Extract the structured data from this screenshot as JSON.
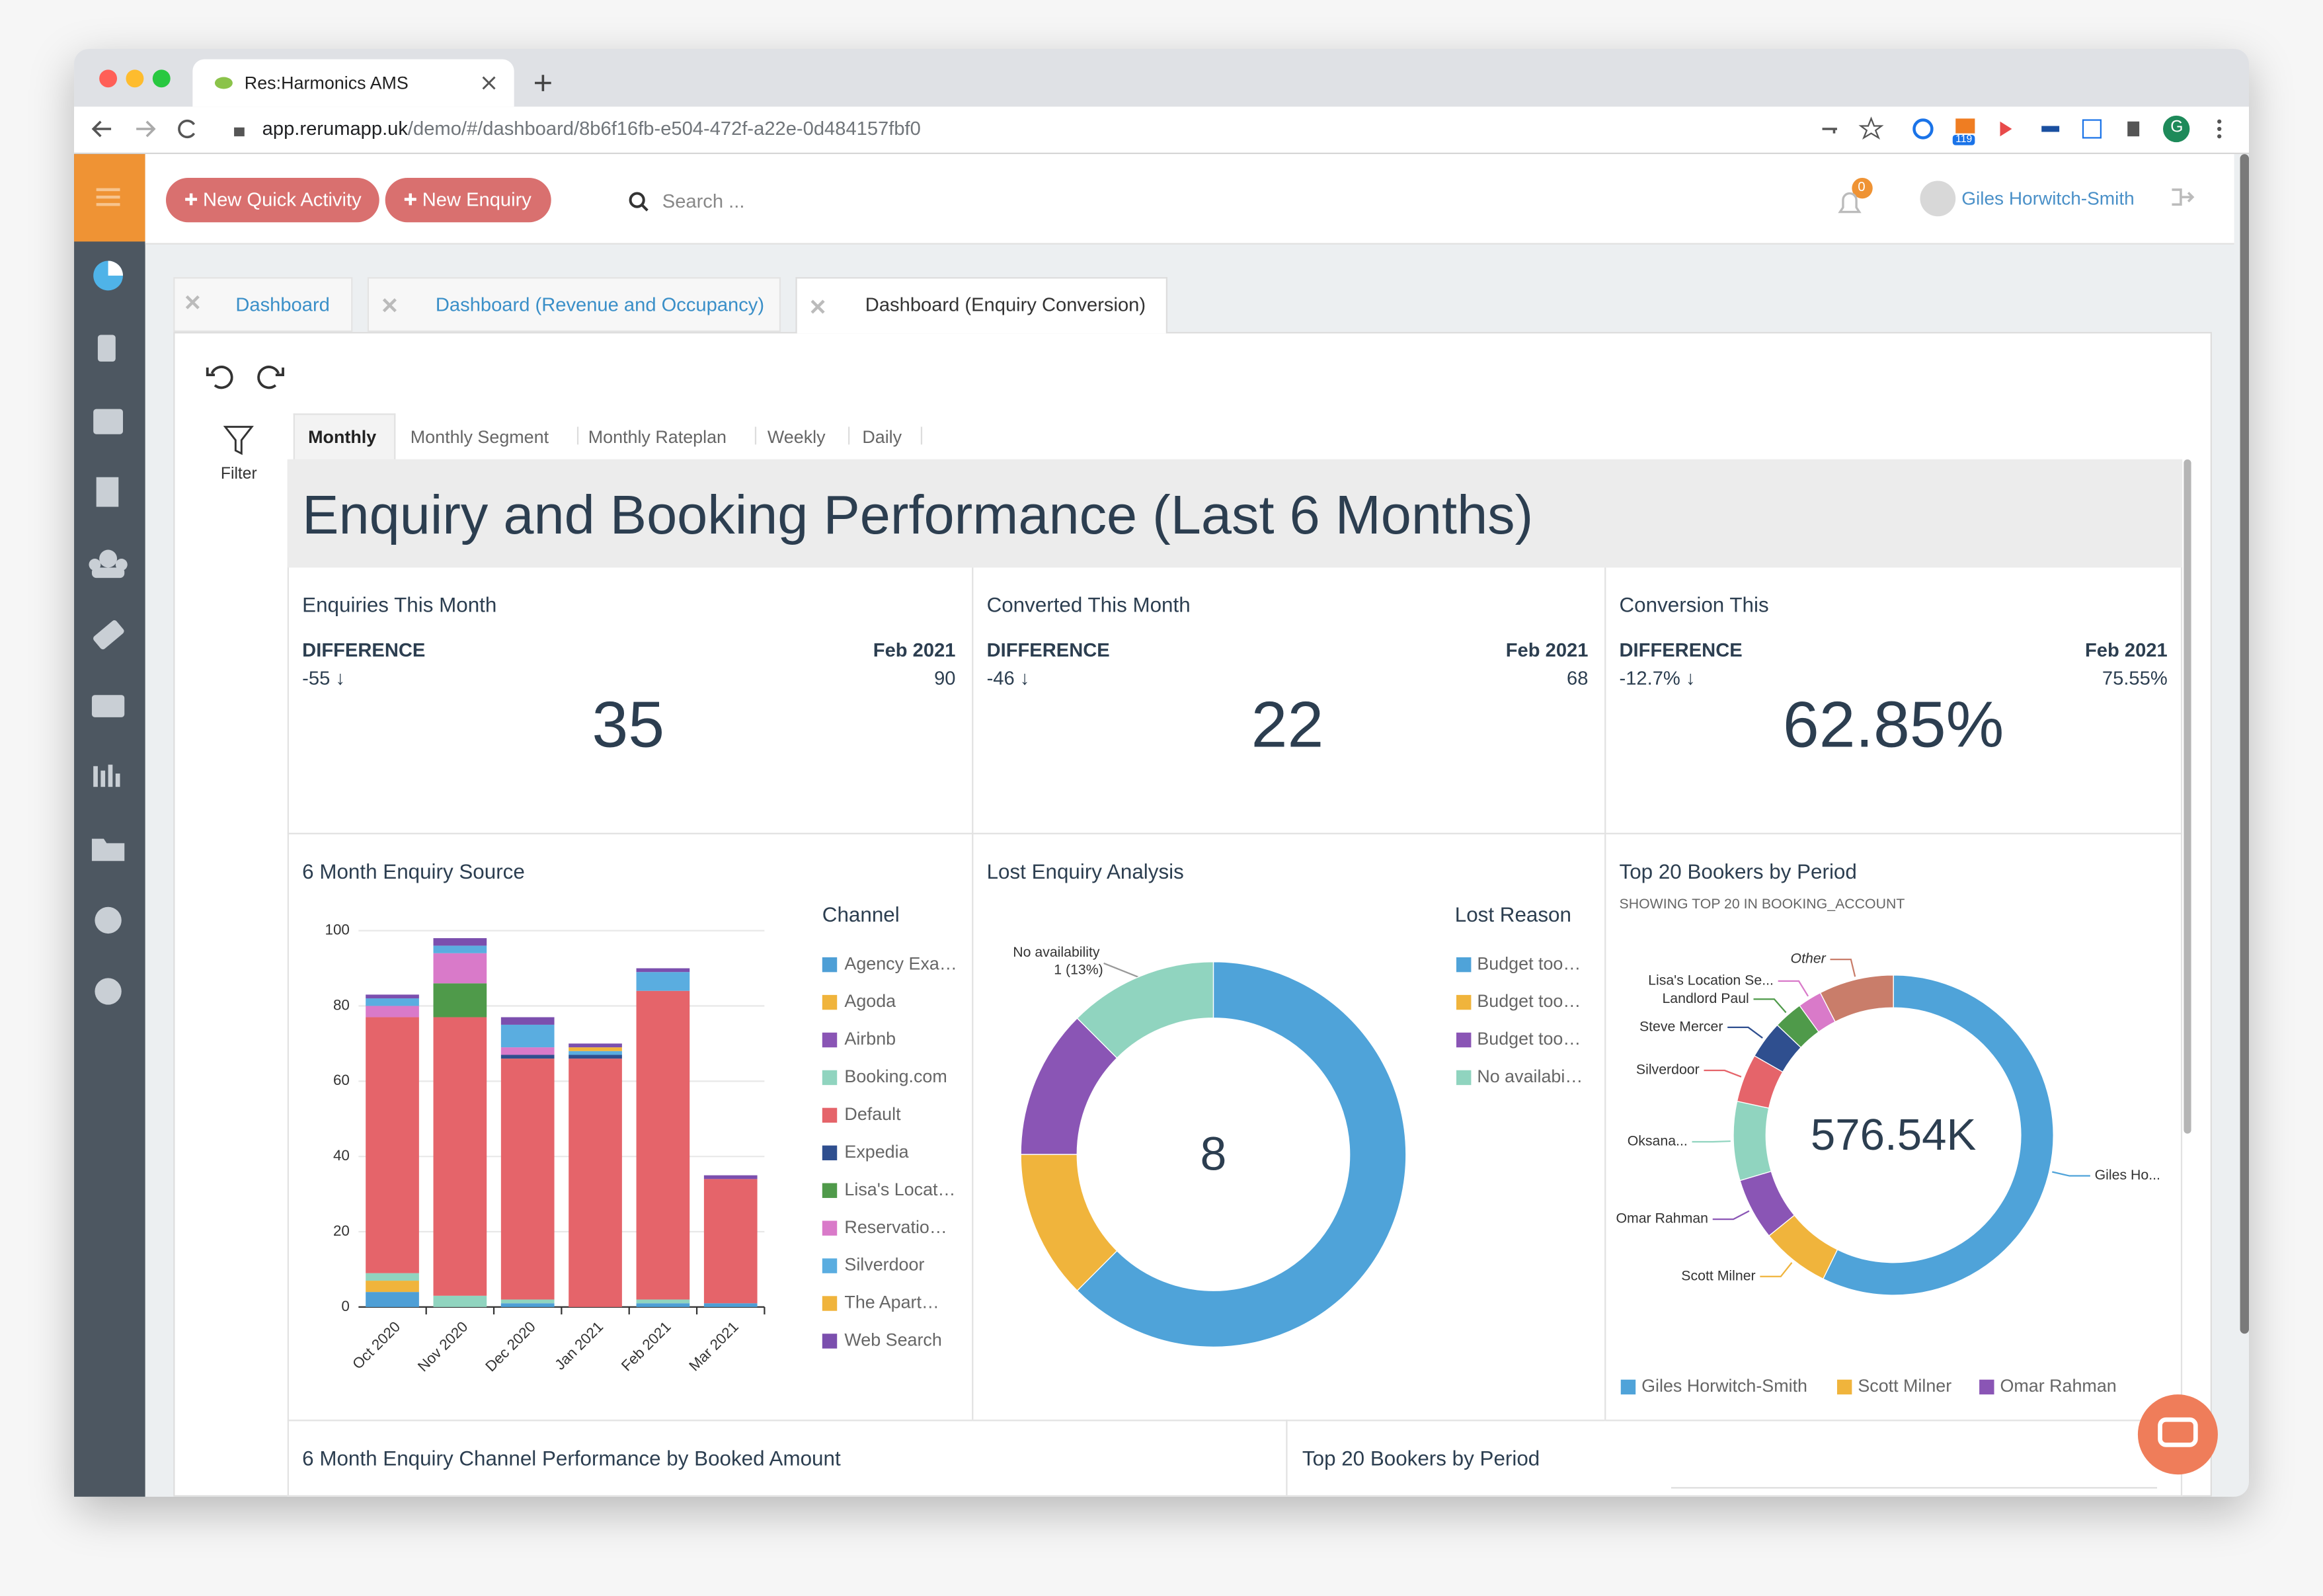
{
  "browser": {
    "tab_title": "Res:Harmonics AMS",
    "url_host": "app.rerumapp.uk",
    "url_path": "/demo/#/dashboard/8b6f16fb-e504-472f-a22e-0d484157fbf0",
    "extension_badge": "119",
    "profile_initial": "G"
  },
  "toolbar": {
    "new_quick_activity": "New Quick Activity",
    "new_enquiry": "New Enquiry",
    "search_placeholder": "Search ...",
    "notification_count": "0",
    "user": "Giles Horwitch-Smith"
  },
  "tabs": [
    "Dashboard",
    "Dashboard (Revenue and Occupancy)",
    "Dashboard (Enquiry Conversion)"
  ],
  "filter": "Filter",
  "subtabs": [
    "Monthly",
    "Monthly Segment",
    "Monthly Rateplan",
    "Weekly",
    "Daily"
  ],
  "title": "Enquiry and Booking Performance (Last 6 Months)",
  "kpis": [
    {
      "title": "Enquiries This Month",
      "difference_label": "DIFFERENCE",
      "difference": "-55 ↓",
      "period": "Feb 2021",
      "previous": "90",
      "value": "35"
    },
    {
      "title": "Converted This Month",
      "difference_label": "DIFFERENCE",
      "difference": "-46 ↓",
      "period": "Feb 2021",
      "previous": "68",
      "value": "22"
    },
    {
      "title": "Conversion This",
      "difference_label": "DIFFERENCE",
      "difference": "-12.7% ↓",
      "period": "Feb 2021",
      "previous": "75.55%",
      "value": "62.85%"
    }
  ],
  "chart_data": [
    {
      "type": "bar",
      "stacked": true,
      "title": "6 Month Enquiry Source",
      "legend_title": "Channel",
      "categories": [
        "Oct 2020",
        "Nov 2020",
        "Dec 2020",
        "Jan 2021",
        "Feb 2021",
        "Mar 2021"
      ],
      "ylim": [
        0,
        100
      ],
      "yticks": [
        0,
        20,
        40,
        60,
        80,
        100
      ],
      "grid": true,
      "series": [
        {
          "name": "Agency Exa…",
          "color": "#4e9fd6",
          "values": [
            4,
            0,
            1,
            0,
            1,
            1
          ]
        },
        {
          "name": "Agoda",
          "color": "#f0b43c",
          "values": [
            3,
            0,
            0,
            0,
            0,
            0
          ]
        },
        {
          "name": "Airbnb",
          "color": "#8a55b5",
          "values": [
            0,
            0,
            0,
            0,
            0,
            0
          ]
        },
        {
          "name": "Booking.com",
          "color": "#90d4bf",
          "values": [
            2,
            3,
            1,
            0,
            1,
            0
          ]
        },
        {
          "name": "Default",
          "color": "#e5646a",
          "values": [
            68,
            74,
            64,
            66,
            82,
            33
          ]
        },
        {
          "name": "Expedia",
          "color": "#2f4f8f",
          "values": [
            0,
            0,
            1,
            1,
            0,
            0
          ]
        },
        {
          "name": "Lisa's Locat…",
          "color": "#4f9a4a",
          "values": [
            0,
            9,
            0,
            0,
            0,
            0
          ]
        },
        {
          "name": "Reservatio…",
          "color": "#d97ac9",
          "values": [
            3,
            8,
            2,
            0,
            0,
            0
          ]
        },
        {
          "name": "Silverdoor",
          "color": "#5aade0",
          "values": [
            2,
            2,
            6,
            1,
            5,
            0
          ]
        },
        {
          "name": "The Apart…",
          "color": "#f0b43c",
          "values": [
            0,
            0,
            0,
            1,
            0,
            0
          ]
        },
        {
          "name": "Web Search",
          "color": "#7b4fae",
          "values": [
            1,
            2,
            2,
            1,
            1,
            1
          ]
        }
      ]
    },
    {
      "type": "donut",
      "title": "Lost Enquiry Analysis",
      "legend_title": "Lost Reason",
      "center_label": "8",
      "categories": [
        "Budget too…",
        "Budget too…",
        "Budget too…",
        "No availabi…"
      ],
      "values": [
        5,
        1,
        1,
        1
      ],
      "colors": [
        "#4fa3d9",
        "#f0b43c",
        "#8a55b5",
        "#90d4bf"
      ],
      "annotation": [
        "No availability",
        "1 (13%)"
      ]
    },
    {
      "type": "donut",
      "title": "Top 20 Bookers by Period",
      "subtitle": "SHOWING TOP 20 IN BOOKING_ACCOUNT",
      "center_label": "576.54K",
      "categories": [
        "Giles Ho...",
        "Scott Milner",
        "Omar Rahman",
        "Oksana...",
        "Silverdoor",
        "Steve Mercer",
        "Landlord Paul",
        "Lisa's Location Se...",
        "Other"
      ],
      "values": [
        330000,
        40000,
        36000,
        46000,
        28000,
        22000,
        17000,
        14000,
        43540
      ],
      "colors": [
        "#4fa3d9",
        "#f0b43c",
        "#8a55b5",
        "#90d4bf",
        "#e5646a",
        "#2f4f8f",
        "#4f9a4a",
        "#d97ac9",
        "#c97d6a"
      ],
      "legend": [
        "Giles Horwitch-Smith",
        "Scott Milner",
        "Omar Rahman"
      ]
    }
  ],
  "bottom_panels": [
    "6 Month Enquiry Channel Performance by Booked Amount",
    "Top 20 Bookers by Period"
  ]
}
